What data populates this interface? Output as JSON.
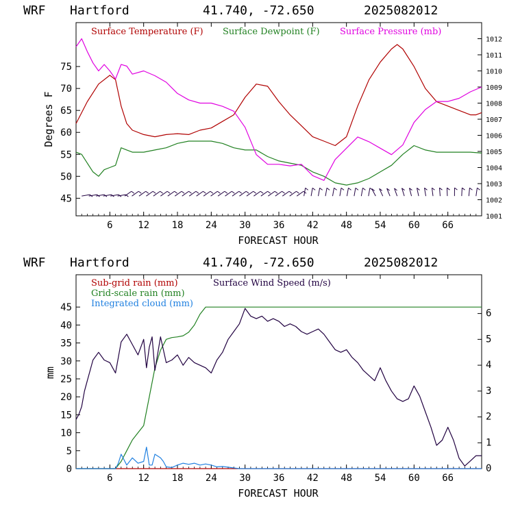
{
  "chart_data": [
    {
      "type": "line",
      "header": {
        "model": "WRF",
        "station": "Hartford",
        "coords": "41.740, -72.650",
        "init": "2025082012"
      },
      "xlabel": "FORECAST HOUR",
      "ylabel": "Degrees F",
      "xlim": [
        0,
        72
      ],
      "ylim": [
        41,
        85
      ],
      "y2lim": [
        1001,
        1013
      ],
      "xticks": [
        "6",
        "12",
        "18",
        "24",
        "30",
        "36",
        "42",
        "48",
        "54",
        "60",
        "66"
      ],
      "yticks": [
        "45",
        "50",
        "55",
        "60",
        "65",
        "70",
        "75"
      ],
      "y2ticks": [
        "1001",
        "1002",
        "1003",
        "1004",
        "1005",
        "1006",
        "1007",
        "1008",
        "1009",
        "1010",
        "1011",
        "1012"
      ],
      "series": [
        {
          "name": "Surface Temperature (F)",
          "color": "#b00000",
          "axis": "left",
          "x": [
            0,
            2,
            4,
            6,
            7,
            8,
            9,
            10,
            12,
            14,
            16,
            18,
            20,
            22,
            24,
            26,
            28,
            30,
            32,
            34,
            36,
            38,
            40,
            42,
            44,
            46,
            48,
            50,
            52,
            54,
            56,
            57,
            58,
            60,
            62,
            64,
            66,
            68,
            70,
            71,
            72
          ],
          "y": [
            62,
            67,
            71,
            73,
            72,
            66,
            62,
            60.5,
            59.5,
            59,
            59.5,
            59.7,
            59.5,
            60.5,
            61,
            62.5,
            64,
            68,
            71,
            70.5,
            67,
            64,
            61.5,
            59,
            58,
            57,
            59,
            66,
            72,
            76,
            79,
            80,
            79,
            75,
            70,
            67,
            66,
            65,
            64,
            64,
            64.5
          ]
        },
        {
          "name": "Surface Dewpoint (F)",
          "color": "#208020",
          "axis": "left",
          "x": [
            0,
            1,
            2,
            3,
            4,
            5,
            6,
            7,
            8,
            9,
            10,
            12,
            14,
            16,
            18,
            20,
            22,
            24,
            26,
            28,
            30,
            32,
            34,
            36,
            38,
            40,
            42,
            44,
            46,
            48,
            50,
            52,
            54,
            56,
            58,
            60,
            62,
            64,
            66,
            68,
            70,
            72
          ],
          "y": [
            55.5,
            55,
            53,
            51,
            50,
            51.5,
            52,
            52.5,
            56.5,
            56,
            55.5,
            55.5,
            56,
            56.5,
            57.5,
            58,
            58,
            58,
            57.5,
            56.5,
            56,
            56,
            54.5,
            53.5,
            53,
            52.5,
            51,
            50,
            48.5,
            48,
            48.5,
            49.5,
            51,
            52.5,
            55,
            57,
            56,
            55.5,
            55.5,
            55.5,
            55.5,
            55.3
          ]
        },
        {
          "name": "Surface Pressure (mb)",
          "color": "#e000e0",
          "axis": "right",
          "x": [
            0,
            1,
            2,
            3,
            4,
            5,
            6,
            7,
            8,
            9,
            10,
            12,
            14,
            16,
            18,
            20,
            22,
            24,
            26,
            28,
            30,
            32,
            34,
            36,
            38,
            40,
            42,
            44,
            46,
            48,
            50,
            52,
            54,
            56,
            58,
            60,
            62,
            64,
            66,
            68,
            70,
            72
          ],
          "y": [
            1011.5,
            1012,
            1011.2,
            1010.5,
            1010,
            1010.4,
            1010,
            1009.5,
            1010.4,
            1010.3,
            1009.8,
            1010,
            1009.7,
            1009.3,
            1008.6,
            1008.2,
            1008,
            1008,
            1007.8,
            1007.5,
            1006.5,
            1004.8,
            1004.2,
            1004.2,
            1004.1,
            1004.2,
            1003.5,
            1003.2,
            1004.5,
            1005.2,
            1005.9,
            1005.6,
            1005.2,
            1004.8,
            1005.4,
            1006.8,
            1007.6,
            1008.1,
            1008.1,
            1008.3,
            1008.7,
            1009
          ]
        }
      ],
      "wind_barbs": {
        "y": 45.5,
        "count": 56
      }
    },
    {
      "type": "line",
      "header": {
        "model": "WRF",
        "station": "Hartford",
        "coords": "41.740, -72.650",
        "init": "2025082012"
      },
      "xlabel": "FORECAST HOUR",
      "ylabel": "mm",
      "xlim": [
        0,
        72
      ],
      "ylim": [
        0,
        54
      ],
      "y2lim": [
        0,
        7.5
      ],
      "xticks": [
        "6",
        "12",
        "18",
        "24",
        "30",
        "36",
        "42",
        "48",
        "54",
        "60",
        "66"
      ],
      "yticks": [
        "0",
        "5",
        "10",
        "15",
        "20",
        "25",
        "30",
        "35",
        "40",
        "45"
      ],
      "y2ticks": [
        "0",
        "1",
        "2",
        "3",
        "4",
        "5",
        "6"
      ],
      "series": [
        {
          "name": "Sub-grid rain (mm)",
          "color": "#b00000",
          "axis": "left",
          "x": [
            0,
            72
          ],
          "y": [
            0,
            0
          ]
        },
        {
          "name": "Grid-scale rain (mm)",
          "color": "#208020",
          "axis": "left",
          "x": [
            0,
            6,
            7,
            8,
            9,
            10,
            11,
            12,
            13,
            14,
            15,
            16,
            17,
            18,
            19,
            20,
            21,
            22,
            23,
            24,
            72
          ],
          "y": [
            0,
            0,
            0,
            2,
            5,
            8,
            10,
            12,
            20,
            28,
            33,
            36,
            36.5,
            36.7,
            37,
            38,
            40,
            43,
            45,
            45,
            45
          ]
        },
        {
          "name": "Integrated cloud (mm)",
          "color": "#2080e0",
          "axis": "left",
          "x": [
            0,
            7,
            7.5,
            8,
            8.5,
            9,
            10,
            11,
            12,
            12.5,
            13,
            13.5,
            14,
            15,
            15.5,
            16,
            17,
            18,
            19,
            20,
            21,
            22,
            23,
            24,
            25,
            26,
            27,
            28,
            29,
            30,
            72
          ],
          "y": [
            0,
            0,
            1.5,
            4,
            2.5,
            1,
            3,
            1.5,
            2,
            6,
            1,
            1,
            4,
            3,
            2,
            0.5,
            0.3,
            1,
            1.5,
            1.2,
            1.5,
            1,
            1.3,
            1,
            0.5,
            0.6,
            0.4,
            0.2,
            0,
            0,
            0
          ]
        },
        {
          "name": "Surface Wind Speed (m/s)",
          "color": "#200040",
          "axis": "right",
          "x": [
            0,
            0.5,
            1,
            1.5,
            2,
            3,
            4,
            5,
            6,
            7,
            8,
            9,
            10,
            11,
            12,
            12.5,
            13,
            13.5,
            14,
            15,
            16,
            17,
            18,
            19,
            20,
            21,
            22,
            23,
            24,
            25,
            26,
            27,
            28,
            29,
            30,
            31,
            32,
            33,
            34,
            35,
            36,
            37,
            38,
            39,
            40,
            41,
            42,
            43,
            44,
            45,
            46,
            47,
            48,
            49,
            50,
            51,
            52,
            53,
            54,
            55,
            56,
            57,
            58,
            59,
            60,
            61,
            62,
            63,
            64,
            65,
            66,
            67,
            68,
            69,
            70,
            71,
            72
          ],
          "y": [
            1.9,
            2.1,
            2.4,
            3,
            3.4,
            4.2,
            4.5,
            4.2,
            4.1,
            3.7,
            4.9,
            5.2,
            4.8,
            4.4,
            5.0,
            3.9,
            4.7,
            5.1,
            3.8,
            5.1,
            4.1,
            4.2,
            4.4,
            4.0,
            4.3,
            4.1,
            4.0,
            3.9,
            3.7,
            4.2,
            4.5,
            5.0,
            5.3,
            5.6,
            6.2,
            5.9,
            5.8,
            5.9,
            5.7,
            5.8,
            5.7,
            5.5,
            5.6,
            5.5,
            5.3,
            5.2,
            5.3,
            5.4,
            5.2,
            4.9,
            4.6,
            4.5,
            4.6,
            4.3,
            4.1,
            3.8,
            3.6,
            3.4,
            3.9,
            3.4,
            3.0,
            2.7,
            2.6,
            2.7,
            3.2,
            2.8,
            2.2,
            1.6,
            0.9,
            1.1,
            1.6,
            1.1,
            0.4,
            0.1,
            0.3,
            0.5,
            0.5
          ]
        }
      ]
    }
  ]
}
